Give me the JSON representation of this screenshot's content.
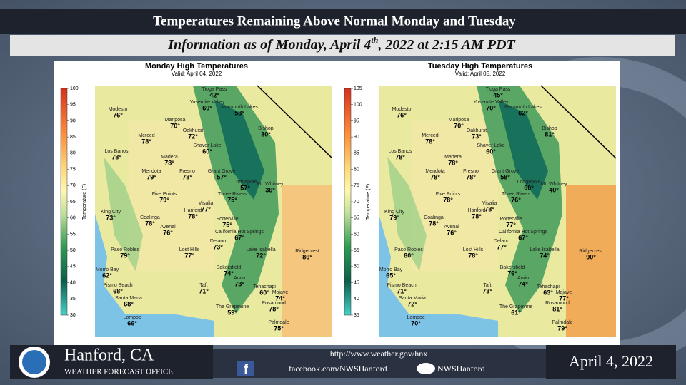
{
  "header": {
    "title": "Temperatures Remaining Above Normal  Monday and Tuesday",
    "subtitle_before": "Information as of Monday, April 4",
    "subtitle_sup": "th",
    "subtitle_after": ", 2022 at 2:15 AM PDT"
  },
  "maps": [
    {
      "title": "Monday High Temperatures",
      "valid": "Valid: April 04, 2022",
      "legend_label": "Temperature (F)",
      "legend_ticks": [
        "100",
        "95",
        "90",
        "85",
        "80",
        "75",
        "70",
        "65",
        "60",
        "55",
        "50",
        "45",
        "40",
        "35",
        "30"
      ],
      "cities": [
        {
          "name": "Tioga Pass",
          "temp": "42°"
        },
        {
          "name": "Yosemite Valley",
          "temp": "69°"
        },
        {
          "name": "Modesto",
          "temp": "76°"
        },
        {
          "name": "Mammoth Lakes",
          "temp": "58°"
        },
        {
          "name": "Mariposa",
          "temp": "70°"
        },
        {
          "name": "Merced",
          "temp": "78°"
        },
        {
          "name": "Oakhurst",
          "temp": "72°"
        },
        {
          "name": "Bishop",
          "temp": "80°"
        },
        {
          "name": "Los Banos",
          "temp": "78°"
        },
        {
          "name": "Shaver Lake",
          "temp": "60°"
        },
        {
          "name": "Madera",
          "temp": "78°"
        },
        {
          "name": "Mendota",
          "temp": "79°"
        },
        {
          "name": "Fresno",
          "temp": "78°"
        },
        {
          "name": "Grant Grove",
          "temp": "57°"
        },
        {
          "name": "Lodgepole",
          "temp": "57°"
        },
        {
          "name": "Mt. Whitney",
          "temp": "36°"
        },
        {
          "name": "Five Points",
          "temp": "79°"
        },
        {
          "name": "Three Rivers",
          "temp": "75°"
        },
        {
          "name": "Visalia",
          "temp": "77°"
        },
        {
          "name": "King City",
          "temp": "73°"
        },
        {
          "name": "Hanford",
          "temp": "78°"
        },
        {
          "name": "Coalinga",
          "temp": "78°"
        },
        {
          "name": "Porterville",
          "temp": "75°"
        },
        {
          "name": "Avenal",
          "temp": "76°"
        },
        {
          "name": "California Hot Springs",
          "temp": "67°"
        },
        {
          "name": "Delano",
          "temp": "73°"
        },
        {
          "name": "Lake Isabella",
          "temp": "72°"
        },
        {
          "name": "Ridgecrest",
          "temp": "86°"
        },
        {
          "name": "Paso Robles",
          "temp": "79°"
        },
        {
          "name": "Lost Hills",
          "temp": "77°"
        },
        {
          "name": "Bakersfield",
          "temp": "74°"
        },
        {
          "name": "Morro Bay",
          "temp": "62°"
        },
        {
          "name": "Pismo Beach",
          "temp": "68°"
        },
        {
          "name": "Arvin",
          "temp": "73°"
        },
        {
          "name": "Taft",
          "temp": "71°"
        },
        {
          "name": "Tehachapi",
          "temp": "60°"
        },
        {
          "name": "Mojave",
          "temp": "74°"
        },
        {
          "name": "Santa Maria",
          "temp": "68°"
        },
        {
          "name": "Rosamond",
          "temp": "78°"
        },
        {
          "name": "The Grapevine",
          "temp": "59°"
        },
        {
          "name": "Lompoc",
          "temp": "66°"
        },
        {
          "name": "Palmdale",
          "temp": "75°"
        }
      ]
    },
    {
      "title": "Tuesday High Temperatures",
      "valid": "Valid: April 05, 2022",
      "legend_label": "Temperature (F)",
      "legend_ticks": [
        "105",
        "100",
        "95",
        "90",
        "85",
        "80",
        "75",
        "70",
        "65",
        "60",
        "55",
        "50",
        "45",
        "40",
        "35"
      ],
      "cities": [
        {
          "name": "Tioga Pass",
          "temp": "45°"
        },
        {
          "name": "Yosemite Valley",
          "temp": "70°"
        },
        {
          "name": "Modesto",
          "temp": "76°"
        },
        {
          "name": "Mammoth Lakes",
          "temp": "62°"
        },
        {
          "name": "Mariposa",
          "temp": "70°"
        },
        {
          "name": "Merced",
          "temp": "78°"
        },
        {
          "name": "Oakhurst",
          "temp": "73°"
        },
        {
          "name": "Bishop",
          "temp": "81°"
        },
        {
          "name": "Los Banos",
          "temp": "78°"
        },
        {
          "name": "Shaver Lake",
          "temp": "60°"
        },
        {
          "name": "Madera",
          "temp": "78°"
        },
        {
          "name": "Mendota",
          "temp": "78°"
        },
        {
          "name": "Fresno",
          "temp": "78°"
        },
        {
          "name": "Grant Grove",
          "temp": "58°"
        },
        {
          "name": "Lodgepole",
          "temp": "60°"
        },
        {
          "name": "Mt. Whitney",
          "temp": "40°"
        },
        {
          "name": "Five Points",
          "temp": "78°"
        },
        {
          "name": "Three Rivers",
          "temp": "76°"
        },
        {
          "name": "Visalia",
          "temp": "78°"
        },
        {
          "name": "King City",
          "temp": "79°"
        },
        {
          "name": "Hanford",
          "temp": "78°"
        },
        {
          "name": "Coalinga",
          "temp": "78°"
        },
        {
          "name": "Porterville",
          "temp": "77°"
        },
        {
          "name": "Avenal",
          "temp": "76°"
        },
        {
          "name": "California Hot Springs",
          "temp": "67°"
        },
        {
          "name": "Delano",
          "temp": "77°"
        },
        {
          "name": "Lake Isabella",
          "temp": "74°"
        },
        {
          "name": "Ridgecrest",
          "temp": "90°"
        },
        {
          "name": "Paso Robles",
          "temp": "80°"
        },
        {
          "name": "Lost Hills",
          "temp": "78°"
        },
        {
          "name": "Bakersfield",
          "temp": "76°"
        },
        {
          "name": "Morro Bay",
          "temp": "65°"
        },
        {
          "name": "Pismo Beach",
          "temp": "71°"
        },
        {
          "name": "Arvin",
          "temp": "74°"
        },
        {
          "name": "Taft",
          "temp": "73°"
        },
        {
          "name": "Tehachapi",
          "temp": "63°"
        },
        {
          "name": "Mojave",
          "temp": "77°"
        },
        {
          "name": "Santa Maria",
          "temp": "72°"
        },
        {
          "name": "Rosamond",
          "temp": "81°"
        },
        {
          "name": "The Grapevine",
          "temp": "61°"
        },
        {
          "name": "Lompoc",
          "temp": "70°"
        },
        {
          "name": "Palmdale",
          "temp": "79°"
        }
      ]
    }
  ],
  "footer": {
    "office": "Hanford, CA",
    "office_sub": "WEATHER FORECAST OFFICE",
    "url": "http://www.weather.gov/hnx",
    "facebook": "facebook.com/NWSHanford",
    "twitter": "NWSHanford",
    "date": "April 4, 2022"
  }
}
